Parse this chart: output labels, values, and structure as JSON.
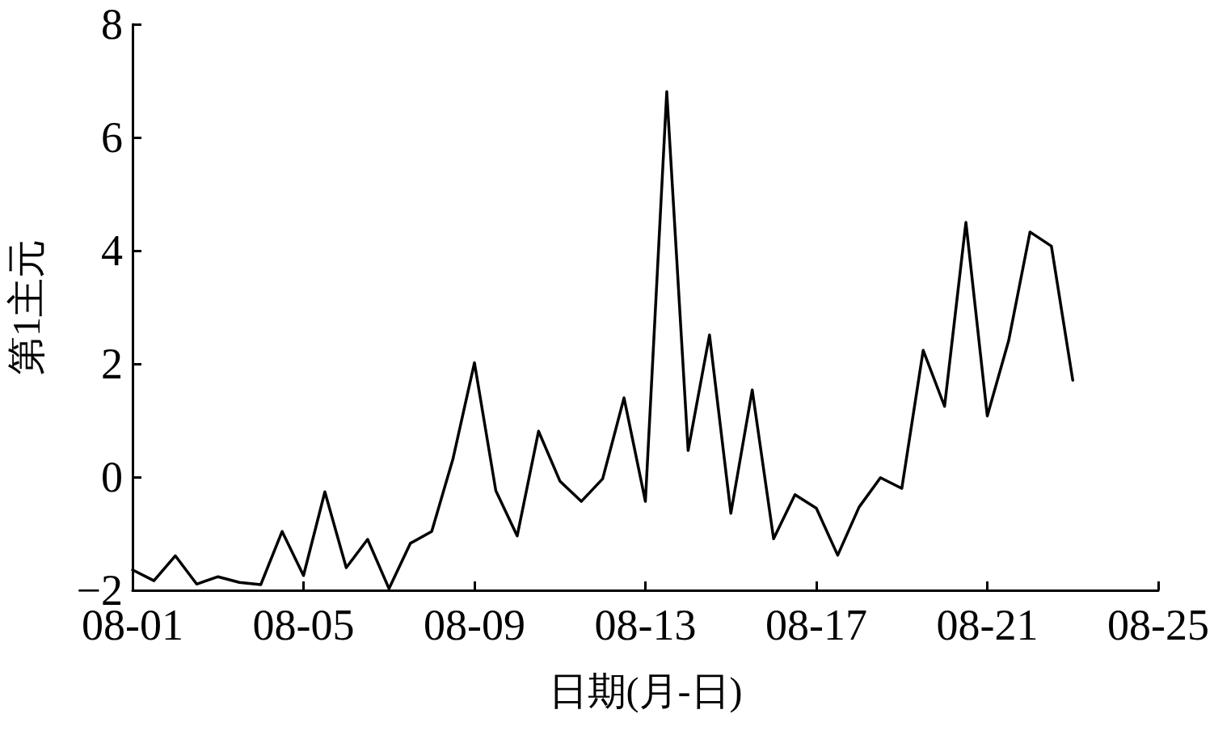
{
  "chart_data": {
    "type": "line",
    "xlabel": "日期(月-日)",
    "ylabel": "第1主元",
    "x": [
      "--08-01T00:00",
      "--08-01T12:00",
      "--08-02T00:00",
      "--08-02T12:00",
      "--08-03T00:00",
      "--08-03T12:00",
      "--08-04T00:00",
      "--08-04T12:00",
      "--08-05T00:00",
      "--08-05T12:00",
      "--08-06T00:00",
      "--08-06T12:00",
      "--08-07T00:00",
      "--08-07T12:00",
      "--08-08T00:00",
      "--08-08T12:00",
      "--08-09T00:00",
      "--08-09T12:00",
      "--08-10T00:00",
      "--08-10T12:00",
      "--08-11T00:00",
      "--08-11T12:00",
      "--08-12T00:00",
      "--08-12T12:00",
      "--08-13T00:00",
      "--08-13T12:00",
      "--08-14T00:00",
      "--08-14T12:00",
      "--08-15T00:00",
      "--08-15T12:00",
      "--08-16T00:00",
      "--08-16T12:00",
      "--08-17T00:00",
      "--08-17T12:00",
      "--08-18T00:00",
      "--08-18T12:00",
      "--08-19T00:00",
      "--08-19T12:00",
      "--08-20T00:00",
      "--08-20T12:00",
      "--08-21T00:00",
      "--08-21T12:00",
      "--08-22T00:00",
      "--08-22T12:00",
      "--08-23T00:00"
    ],
    "series": [
      {
        "color": "#000000",
        "values": [
          -1.64,
          -1.83,
          -1.39,
          -1.89,
          -1.76,
          -1.86,
          -1.9,
          -0.96,
          -1.74,
          -0.26,
          -1.6,
          -1.1,
          -1.97,
          -1.17,
          -0.96,
          0.33,
          2.02,
          -0.24,
          -1.04,
          0.81,
          -0.07,
          -0.43,
          -0.03,
          1.4,
          -0.43,
          6.81,
          0.47,
          2.51,
          -0.64,
          1.54,
          -1.09,
          -0.31,
          -0.55,
          -1.38,
          -0.53,
          -0.01,
          -0.2,
          2.24,
          1.25,
          4.5,
          1.08,
          2.41,
          4.33,
          4.08,
          1.71
        ]
      }
    ],
    "xlim": [
      "--08-01",
      "--08-25"
    ],
    "xticks": [
      {
        "value": "--08-01",
        "label": "08-01"
      },
      {
        "value": "--08-05",
        "label": "08-05"
      },
      {
        "value": "--08-09",
        "label": "08-09"
      },
      {
        "value": "--08-13",
        "label": "08-13"
      },
      {
        "value": "--08-17",
        "label": "08-17"
      },
      {
        "value": "--08-21",
        "label": "08-21"
      },
      {
        "value": "--08-25",
        "label": "08-25"
      }
    ],
    "ylim": [
      -2,
      8
    ],
    "yticks": [
      -2,
      0,
      2,
      4,
      6,
      8
    ],
    "marker": "none",
    "line_style": "solid",
    "grid": false
  }
}
